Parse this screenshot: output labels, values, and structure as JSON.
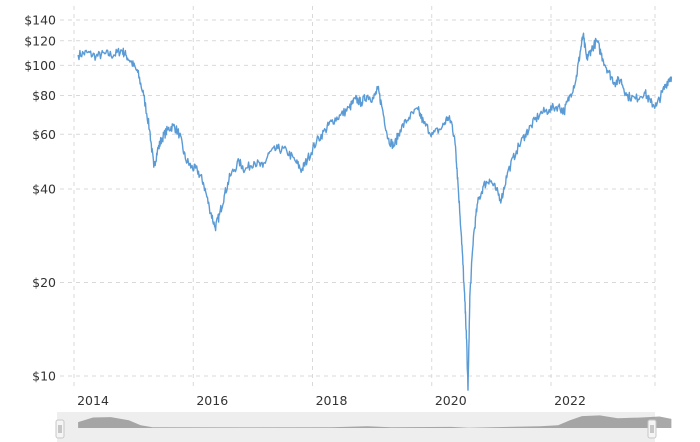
{
  "chart_data": {
    "type": "line",
    "scale": "log",
    "ylim": [
      9,
      150
    ],
    "y_ticks": [
      {
        "value": 10,
        "label": "$10"
      },
      {
        "value": 20,
        "label": "$20"
      },
      {
        "value": 40,
        "label": "$40"
      },
      {
        "value": 60,
        "label": "$60"
      },
      {
        "value": 80,
        "label": "$80"
      },
      {
        "value": 100,
        "label": "$100"
      },
      {
        "value": 120,
        "label": "$120"
      },
      {
        "value": 140,
        "label": "$140"
      }
    ],
    "x_ticks": [
      {
        "value": 2014,
        "label": "2014"
      },
      {
        "value": 2016,
        "label": "2016"
      },
      {
        "value": 2018,
        "label": "2018"
      },
      {
        "value": 2020,
        "label": "2020"
      },
      {
        "value": 2022,
        "label": "2022"
      }
    ],
    "xlim": [
      2013.75,
      2023.7
    ],
    "grid": true,
    "series": [
      {
        "color": "#5b9bd5",
        "points": [
          [
            2013.75,
            108
          ],
          [
            2013.9,
            110
          ],
          [
            2014.05,
            107
          ],
          [
            2014.2,
            109
          ],
          [
            2014.35,
            108
          ],
          [
            2014.48,
            112
          ],
          [
            2014.55,
            108
          ],
          [
            2014.65,
            102
          ],
          [
            2014.75,
            95
          ],
          [
            2014.85,
            80
          ],
          [
            2014.95,
            62
          ],
          [
            2015.02,
            47
          ],
          [
            2015.08,
            53
          ],
          [
            2015.15,
            58
          ],
          [
            2015.25,
            62
          ],
          [
            2015.35,
            64
          ],
          [
            2015.45,
            60
          ],
          [
            2015.55,
            50
          ],
          [
            2015.65,
            47
          ],
          [
            2015.75,
            46
          ],
          [
            2015.85,
            42
          ],
          [
            2015.95,
            35
          ],
          [
            2016.05,
            30
          ],
          [
            2016.12,
            33
          ],
          [
            2016.2,
            38
          ],
          [
            2016.3,
            44
          ],
          [
            2016.45,
            49
          ],
          [
            2016.55,
            46
          ],
          [
            2016.7,
            49
          ],
          [
            2016.85,
            47
          ],
          [
            2016.95,
            52
          ],
          [
            2017.1,
            54
          ],
          [
            2017.25,
            53
          ],
          [
            2017.4,
            49
          ],
          [
            2017.5,
            46
          ],
          [
            2017.6,
            50
          ],
          [
            2017.75,
            57
          ],
          [
            2017.9,
            62
          ],
          [
            2018.0,
            66
          ],
          [
            2018.15,
            69
          ],
          [
            2018.3,
            73
          ],
          [
            2018.4,
            78
          ],
          [
            2018.5,
            76
          ],
          [
            2018.6,
            80
          ],
          [
            2018.7,
            78
          ],
          [
            2018.78,
            84
          ],
          [
            2018.85,
            73
          ],
          [
            2018.95,
            58
          ],
          [
            2019.05,
            55
          ],
          [
            2019.15,
            62
          ],
          [
            2019.3,
            68
          ],
          [
            2019.45,
            72
          ],
          [
            2019.55,
            65
          ],
          [
            2019.7,
            60
          ],
          [
            2019.85,
            63
          ],
          [
            2019.95,
            68
          ],
          [
            2020.02,
            65
          ],
          [
            2020.08,
            55
          ],
          [
            2020.12,
            42
          ],
          [
            2020.18,
            28
          ],
          [
            2020.22,
            20
          ],
          [
            2020.26,
            14
          ],
          [
            2020.29,
            9
          ],
          [
            2020.32,
            18
          ],
          [
            2020.38,
            28
          ],
          [
            2020.45,
            36
          ],
          [
            2020.55,
            41
          ],
          [
            2020.65,
            43
          ],
          [
            2020.75,
            40
          ],
          [
            2020.85,
            37
          ],
          [
            2020.95,
            45
          ],
          [
            2021.1,
            53
          ],
          [
            2021.25,
            60
          ],
          [
            2021.35,
            64
          ],
          [
            2021.5,
            70
          ],
          [
            2021.65,
            72
          ],
          [
            2021.8,
            74
          ],
          [
            2021.9,
            71
          ],
          [
            2022.0,
            80
          ],
          [
            2022.1,
            90
          ],
          [
            2022.17,
            110
          ],
          [
            2022.22,
            125
          ],
          [
            2022.28,
            105
          ],
          [
            2022.35,
            112
          ],
          [
            2022.45,
            120
          ],
          [
            2022.55,
            105
          ],
          [
            2022.65,
            95
          ],
          [
            2022.75,
            88
          ],
          [
            2022.85,
            90
          ],
          [
            2022.95,
            80
          ],
          [
            2023.1,
            78
          ],
          [
            2023.25,
            82
          ],
          [
            2023.35,
            76
          ],
          [
            2023.45,
            74
          ],
          [
            2023.55,
            82
          ],
          [
            2023.65,
            90
          ],
          [
            2023.7,
            92
          ]
        ]
      }
    ],
    "navigator": {
      "points": [
        [
          2013.75,
          0.42
        ],
        [
          2014.0,
          0.75
        ],
        [
          2014.3,
          0.78
        ],
        [
          2014.6,
          0.55
        ],
        [
          2014.8,
          0.2
        ],
        [
          2015.0,
          0.05
        ],
        [
          2016.5,
          0.04
        ],
        [
          2018.0,
          0.05
        ],
        [
          2018.6,
          0.12
        ],
        [
          2019.0,
          0.06
        ],
        [
          2020.0,
          0.08
        ],
        [
          2020.3,
          0.02
        ],
        [
          2021.5,
          0.12
        ],
        [
          2021.8,
          0.2
        ],
        [
          2022.0,
          0.55
        ],
        [
          2022.2,
          0.85
        ],
        [
          2022.5,
          0.9
        ],
        [
          2022.8,
          0.7
        ],
        [
          2023.2,
          0.75
        ],
        [
          2023.5,
          0.82
        ],
        [
          2023.7,
          0.65
        ]
      ]
    }
  }
}
